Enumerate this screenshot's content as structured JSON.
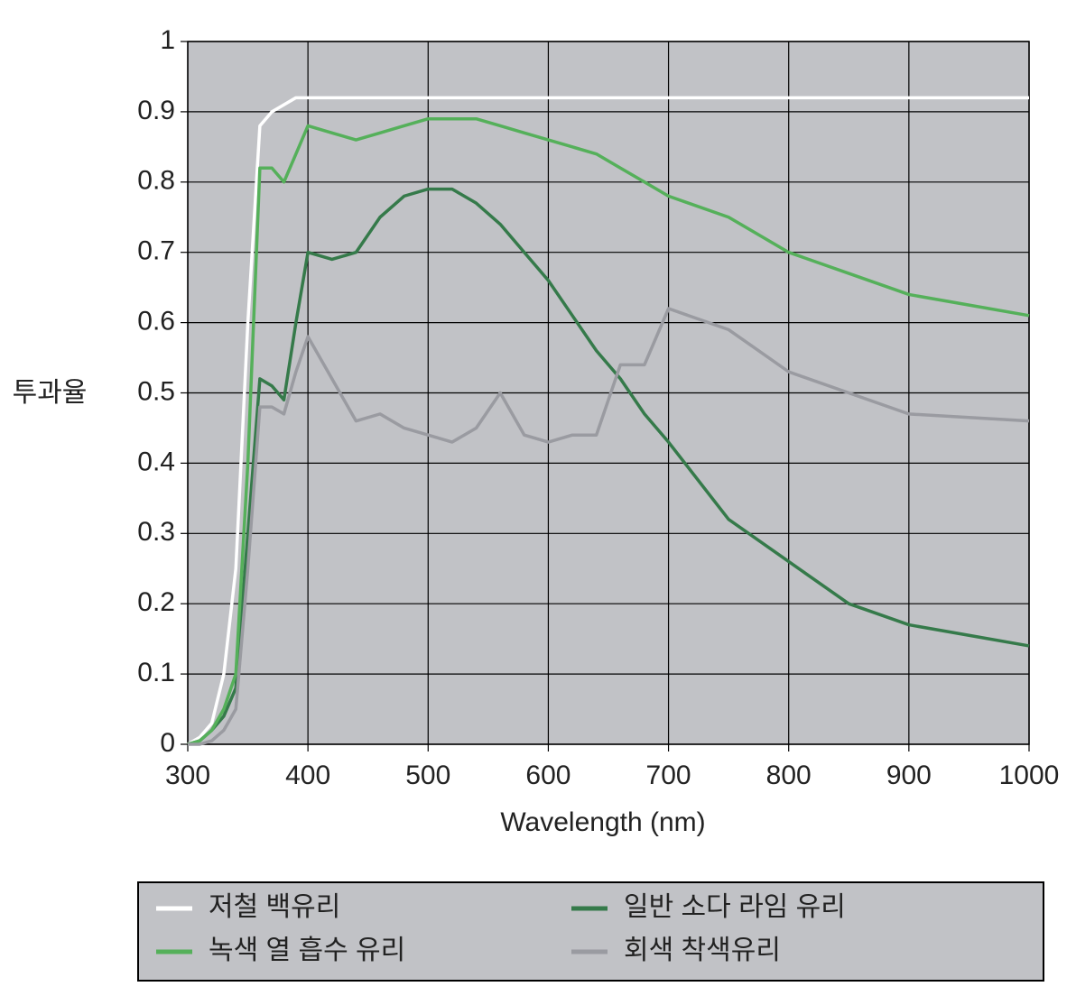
{
  "chart_data": {
    "type": "line",
    "x_label": "Wavelength (nm)",
    "y_label": "투과율",
    "x": [
      300,
      310,
      320,
      330,
      340,
      350,
      360,
      370,
      380,
      390,
      400,
      420,
      440,
      460,
      480,
      500,
      520,
      540,
      560,
      580,
      600,
      620,
      640,
      660,
      680,
      700,
      750,
      800,
      850,
      900,
      950,
      1000
    ],
    "series": [
      {
        "name": "저철 백유리",
        "color": "#ffffff",
        "values": [
          0,
          0.01,
          0.03,
          0.1,
          0.25,
          0.6,
          0.88,
          0.9,
          0.91,
          0.92,
          0.92,
          0.92,
          0.92,
          0.92,
          0.92,
          0.92,
          0.92,
          0.92,
          0.92,
          0.92,
          0.92,
          0.92,
          0.92,
          0.92,
          0.92,
          0.92,
          0.92,
          0.92,
          0.92,
          0.92,
          0.92,
          0.92
        ]
      },
      {
        "name": "일반 소다 라임 유리",
        "color": "#357a4a",
        "values": [
          0,
          0.005,
          0.02,
          0.04,
          0.08,
          0.3,
          0.52,
          0.51,
          0.49,
          0.6,
          0.7,
          0.69,
          0.7,
          0.75,
          0.78,
          0.79,
          0.79,
          0.77,
          0.74,
          0.7,
          0.66,
          0.61,
          0.56,
          0.52,
          0.47,
          0.43,
          0.32,
          0.26,
          0.2,
          0.17,
          0.155,
          0.14
        ]
      },
      {
        "name": "녹색 열 흡수 유리",
        "color": "#55b05a",
        "values": [
          0,
          0.005,
          0.02,
          0.05,
          0.1,
          0.4,
          0.82,
          0.82,
          0.8,
          0.84,
          0.88,
          0.87,
          0.86,
          0.87,
          0.88,
          0.89,
          0.89,
          0.89,
          0.88,
          0.87,
          0.86,
          0.85,
          0.84,
          0.82,
          0.8,
          0.78,
          0.75,
          0.7,
          0.67,
          0.64,
          0.625,
          0.61
        ]
      },
      {
        "name": "회색 착색유리",
        "color": "#9a9ba1",
        "values": [
          0,
          0,
          0.005,
          0.02,
          0.05,
          0.25,
          0.48,
          0.48,
          0.47,
          0.53,
          0.58,
          0.52,
          0.46,
          0.47,
          0.45,
          0.44,
          0.43,
          0.45,
          0.5,
          0.44,
          0.43,
          0.44,
          0.44,
          0.54,
          0.54,
          0.62,
          0.59,
          0.53,
          0.5,
          0.47,
          0.465,
          0.46
        ]
      }
    ],
    "xlim": [
      300,
      1000
    ],
    "xticks": [
      300,
      400,
      500,
      600,
      700,
      800,
      900,
      1000
    ],
    "ylim": [
      0,
      1
    ],
    "yticks": [
      0,
      0.1,
      0.2,
      0.3,
      0.4,
      0.5,
      0.6,
      0.7,
      0.8,
      0.9,
      1
    ],
    "grid": true,
    "background": "#c1c2c6"
  }
}
